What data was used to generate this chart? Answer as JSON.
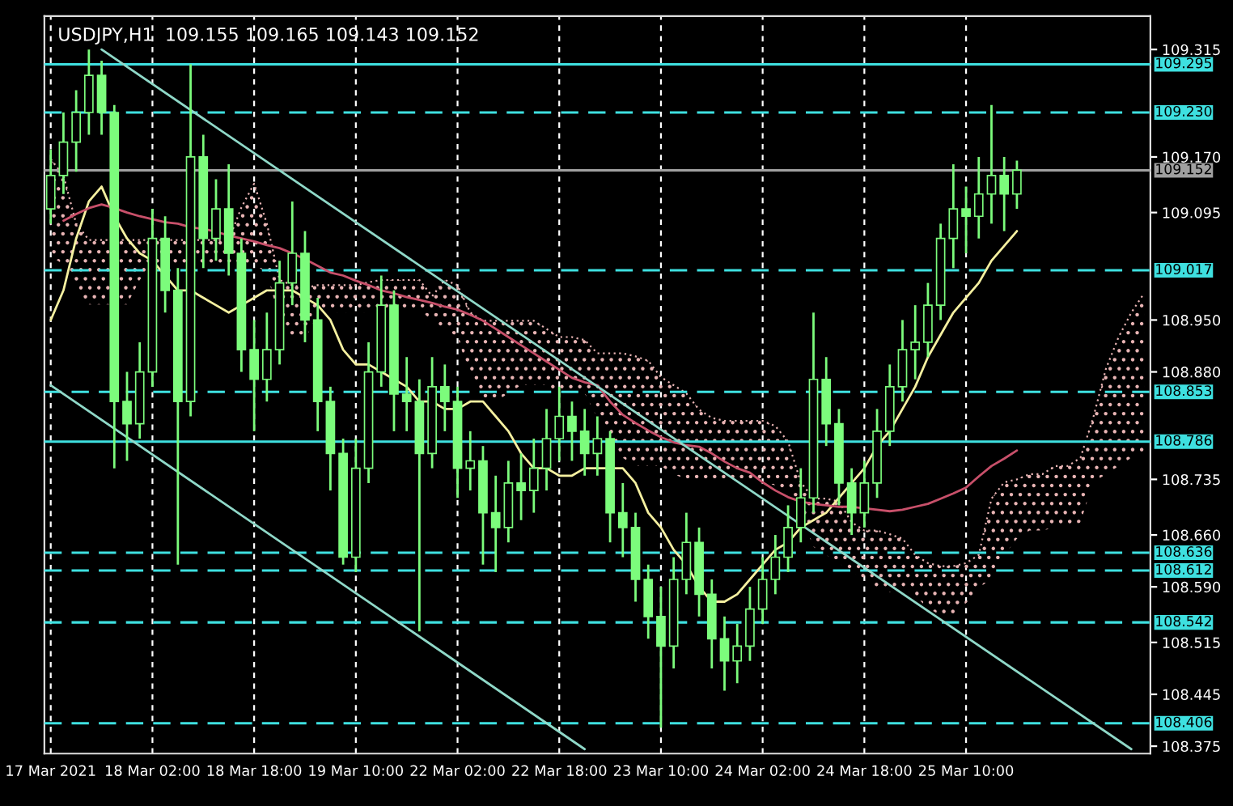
{
  "chart_data": {
    "type": "candlestick",
    "title": "USDJPY,H1  109.155 109.165 109.143 109.152",
    "categories": [
      "17 Mar 2021",
      null,
      null,
      null,
      null,
      null,
      null,
      null,
      "18 Mar 02:00",
      null,
      null,
      null,
      null,
      null,
      null,
      null,
      "18 Mar 18:00",
      null,
      null,
      null,
      null,
      null,
      null,
      null,
      "19 Mar 10:00",
      null,
      null,
      null,
      null,
      null,
      null,
      null,
      "22 Mar 02:00",
      null,
      null,
      null,
      null,
      null,
      null,
      null,
      "22 Mar 18:00",
      null,
      null,
      null,
      null,
      null,
      null,
      null,
      "23 Mar 10:00",
      null,
      null,
      null,
      null,
      null,
      null,
      null,
      "24 Mar 02:00",
      null,
      null,
      null,
      null,
      null,
      null,
      null,
      "24 Mar 18:00",
      null,
      null,
      null,
      null,
      null,
      null,
      null,
      "25 Mar 10:00",
      null,
      null,
      null,
      null,
      null,
      null,
      null,
      null,
      null,
      null,
      null,
      null,
      null,
      null
    ],
    "color": "#7cfc7c",
    "ohlc": [
      [
        109.1,
        109.18,
        109.08,
        109.145
      ],
      [
        109.145,
        109.23,
        109.12,
        109.19
      ],
      [
        109.19,
        109.26,
        109.15,
        109.23
      ],
      [
        109.23,
        109.315,
        109.2,
        109.28
      ],
      [
        109.28,
        109.3,
        109.2,
        109.23
      ],
      [
        109.23,
        109.24,
        108.75,
        108.84
      ],
      [
        108.84,
        108.88,
        108.76,
        108.81
      ],
      [
        108.81,
        108.92,
        108.79,
        108.88
      ],
      [
        108.88,
        109.1,
        108.86,
        109.06
      ],
      [
        109.06,
        109.09,
        108.96,
        108.99
      ],
      [
        108.99,
        109.02,
        108.62,
        108.84
      ],
      [
        108.84,
        109.295,
        108.82,
        109.17
      ],
      [
        109.17,
        109.2,
        109.02,
        109.06
      ],
      [
        109.06,
        109.14,
        109.03,
        109.1
      ],
      [
        109.1,
        109.16,
        109.01,
        109.04
      ],
      [
        109.04,
        109.06,
        108.88,
        108.91
      ],
      [
        108.91,
        108.95,
        108.8,
        108.87
      ],
      [
        108.87,
        108.96,
        108.84,
        108.91
      ],
      [
        108.91,
        109.03,
        108.89,
        109.0
      ],
      [
        109.0,
        109.11,
        108.97,
        109.04
      ],
      [
        109.04,
        109.07,
        108.92,
        108.95
      ],
      [
        108.95,
        108.98,
        108.8,
        108.84
      ],
      [
        108.84,
        108.86,
        108.72,
        108.77
      ],
      [
        108.77,
        108.79,
        108.62,
        108.63
      ],
      [
        108.63,
        108.79,
        108.61,
        108.75
      ],
      [
        108.75,
        108.92,
        108.73,
        108.88
      ],
      [
        108.88,
        109.01,
        108.86,
        108.97
      ],
      [
        108.97,
        108.99,
        108.8,
        108.85
      ],
      [
        108.85,
        108.9,
        108.8,
        108.84
      ],
      [
        108.84,
        108.87,
        108.53,
        108.77
      ],
      [
        108.77,
        108.9,
        108.75,
        108.86
      ],
      [
        108.86,
        108.89,
        108.8,
        108.84
      ],
      [
        108.84,
        108.86,
        108.71,
        108.75
      ],
      [
        108.75,
        108.8,
        108.72,
        108.76
      ],
      [
        108.76,
        108.78,
        108.62,
        108.69
      ],
      [
        108.69,
        108.74,
        108.61,
        108.67
      ],
      [
        108.67,
        108.76,
        108.65,
        108.73
      ],
      [
        108.73,
        108.77,
        108.68,
        108.72
      ],
      [
        108.72,
        108.79,
        108.69,
        108.75
      ],
      [
        108.75,
        108.83,
        108.72,
        108.79
      ],
      [
        108.79,
        108.86,
        108.76,
        108.82
      ],
      [
        108.82,
        108.84,
        108.76,
        108.8
      ],
      [
        108.8,
        108.83,
        108.74,
        108.77
      ],
      [
        108.77,
        108.82,
        108.74,
        108.79
      ],
      [
        108.79,
        108.8,
        108.65,
        108.69
      ],
      [
        108.69,
        108.73,
        108.63,
        108.67
      ],
      [
        108.67,
        108.69,
        108.57,
        108.6
      ],
      [
        108.6,
        108.62,
        108.52,
        108.55
      ],
      [
        108.55,
        108.59,
        108.4,
        108.51
      ],
      [
        108.51,
        108.63,
        108.48,
        108.6
      ],
      [
        108.6,
        108.69,
        108.58,
        108.65
      ],
      [
        108.65,
        108.67,
        108.55,
        108.58
      ],
      [
        108.58,
        108.6,
        108.48,
        108.52
      ],
      [
        108.52,
        108.55,
        108.45,
        108.49
      ],
      [
        108.49,
        108.54,
        108.46,
        108.51
      ],
      [
        108.51,
        108.59,
        108.49,
        108.56
      ],
      [
        108.56,
        108.63,
        108.54,
        108.6
      ],
      [
        108.6,
        108.66,
        108.58,
        108.63
      ],
      [
        108.63,
        108.7,
        108.61,
        108.67
      ],
      [
        108.67,
        108.75,
        108.65,
        108.71
      ],
      [
        108.71,
        108.96,
        108.69,
        108.87
      ],
      [
        108.87,
        108.9,
        108.78,
        108.81
      ],
      [
        108.81,
        108.83,
        108.7,
        108.73
      ],
      [
        108.73,
        108.75,
        108.66,
        108.69
      ],
      [
        108.69,
        108.76,
        108.67,
        108.73
      ],
      [
        108.73,
        108.83,
        108.71,
        108.8
      ],
      [
        108.8,
        108.89,
        108.78,
        108.86
      ],
      [
        108.86,
        108.95,
        108.84,
        108.91
      ],
      [
        108.91,
        108.97,
        108.87,
        108.92
      ],
      [
        108.92,
        109.0,
        108.9,
        108.97
      ],
      [
        108.97,
        109.08,
        108.95,
        109.06
      ],
      [
        109.06,
        109.16,
        109.02,
        109.1
      ],
      [
        109.1,
        109.13,
        109.04,
        109.09
      ],
      [
        109.09,
        109.17,
        109.06,
        109.12
      ],
      [
        109.12,
        109.24,
        109.08,
        109.145
      ],
      [
        109.145,
        109.17,
        109.07,
        109.12
      ],
      [
        109.12,
        109.165,
        109.1,
        109.152
      ],
      null,
      null,
      null,
      null,
      null,
      null,
      null,
      null,
      null,
      null
    ],
    "series": [
      {
        "type": "line",
        "color": "#f5f0a0",
        "values": [
          108.95,
          108.99,
          109.06,
          109.11,
          109.13,
          109.09,
          109.06,
          109.04,
          109.03,
          109.01,
          108.99,
          108.99,
          108.98,
          108.97,
          108.96,
          108.97,
          108.98,
          108.99,
          108.99,
          108.99,
          108.98,
          108.97,
          108.95,
          108.91,
          108.89,
          108.89,
          108.88,
          108.87,
          108.86,
          108.84,
          108.84,
          108.83,
          108.83,
          108.84,
          108.84,
          108.82,
          108.8,
          108.77,
          108.75,
          108.75,
          108.74,
          108.74,
          108.75,
          108.75,
          108.75,
          108.75,
          108.73,
          108.69,
          108.67,
          108.64,
          108.62,
          108.59,
          108.57,
          108.57,
          108.58,
          108.6,
          108.62,
          108.64,
          108.65,
          108.67,
          108.68,
          108.69,
          108.71,
          108.73,
          108.75,
          108.78,
          108.8,
          108.83,
          108.86,
          108.9,
          108.93,
          108.96,
          108.98,
          109.0,
          109.03,
          109.05,
          109.07,
          null,
          null,
          null,
          null,
          null,
          null,
          null,
          null,
          null,
          null
        ]
      },
      {
        "type": "line",
        "color": "#c8506a",
        "values": [
          null,
          109.084,
          109.093,
          109.101,
          109.106,
          109.101,
          109.095,
          109.09,
          109.086,
          109.082,
          109.08,
          109.075,
          109.073,
          109.069,
          109.064,
          109.06,
          109.056,
          109.051,
          109.047,
          109.04,
          109.032,
          109.023,
          109.014,
          109.01,
          109.003,
          108.997,
          108.99,
          108.986,
          108.981,
          108.977,
          108.973,
          108.968,
          108.964,
          108.957,
          108.949,
          108.938,
          108.927,
          108.916,
          108.905,
          108.894,
          108.883,
          108.872,
          108.866,
          108.862,
          108.84,
          108.822,
          108.811,
          108.801,
          108.792,
          108.785,
          108.781,
          108.779,
          108.77,
          108.759,
          108.75,
          108.744,
          108.731,
          108.72,
          108.711,
          108.705,
          108.702,
          108.7,
          108.698,
          108.698,
          108.696,
          108.694,
          108.692,
          108.694,
          108.698,
          108.702,
          108.709,
          108.716,
          108.724,
          108.739,
          108.753,
          108.763,
          108.774,
          null,
          null,
          null,
          null,
          null,
          null,
          null,
          null,
          null,
          null
        ]
      },
      {
        "type": "line",
        "color": "#e8b4b4",
        "line_style": "dotted",
        "values": [
          109.167,
          109.145,
          109.08,
          109.058,
          109.058,
          109.058,
          109.058,
          109.058,
          109.058,
          109.058,
          109.058,
          109.058,
          109.058,
          109.058,
          109.058,
          109.102,
          109.134,
          109.08,
          109.004,
          108.997,
          108.993,
          108.997,
          108.997,
          108.997,
          108.997,
          109.001,
          109.004,
          109.004,
          109.004,
          109.004,
          108.982,
          109.004,
          108.997,
          108.96,
          108.949,
          108.949,
          108.949,
          108.949,
          108.949,
          108.938,
          108.927,
          108.927,
          108.923,
          108.905,
          108.905,
          108.905,
          108.901,
          108.895,
          108.873,
          108.862,
          108.851,
          108.829,
          108.818,
          108.814,
          108.814,
          108.814,
          108.814,
          108.807,
          108.786,
          108.731,
          108.709,
          108.709,
          108.705,
          108.677,
          108.666,
          108.666,
          108.661,
          108.655,
          108.633,
          108.622,
          108.618,
          108.618,
          108.622,
          108.633,
          108.709,
          108.731,
          108.735,
          108.742,
          108.742,
          108.753,
          108.753,
          108.764,
          108.818,
          108.884,
          108.927,
          108.96,
          108.986
        ],
        "upper": [
          109.167,
          109.145,
          109.08,
          109.058,
          109.058,
          109.058,
          109.058,
          109.058,
          109.058,
          109.058,
          109.058,
          109.058,
          109.058,
          109.058,
          109.058,
          109.102,
          109.134,
          109.08,
          109.004,
          108.997,
          108.993,
          108.997,
          108.997,
          108.997,
          108.997,
          109.001,
          109.004,
          109.004,
          109.004,
          109.004,
          108.982,
          109.004,
          108.997,
          108.96,
          108.949,
          108.949,
          108.949,
          108.949,
          108.949,
          108.938,
          108.927,
          108.927,
          108.923,
          108.905,
          108.905,
          108.905,
          108.901,
          108.895,
          108.873,
          108.862,
          108.851,
          108.829,
          108.818,
          108.814,
          108.814,
          108.814,
          108.814,
          108.807,
          108.786,
          108.731,
          108.709,
          108.709,
          108.705,
          108.677,
          108.666,
          108.666,
          108.661,
          108.655,
          108.633,
          108.622,
          108.618,
          108.618,
          108.622,
          108.633,
          108.709,
          108.731,
          108.735,
          108.742,
          108.742,
          108.753,
          108.753,
          108.764,
          108.818,
          108.884,
          108.927,
          108.96,
          108.986
        ],
        "lower": [
          109.036,
          109.025,
          108.993,
          108.971,
          108.971,
          108.971,
          108.971,
          109.004,
          109.025,
          109.025,
          109.025,
          109.025,
          109.025,
          109.025,
          109.025,
          109.025,
          109.025,
          109.014,
          108.949,
          108.927,
          108.923,
          108.96,
          108.96,
          108.96,
          108.96,
          108.96,
          108.964,
          108.964,
          108.964,
          108.964,
          108.949,
          108.938,
          108.927,
          108.873,
          108.84,
          108.84,
          108.851,
          108.862,
          108.862,
          108.862,
          108.851,
          108.851,
          108.851,
          108.818,
          108.786,
          108.764,
          108.753,
          108.753,
          108.753,
          108.742,
          108.735,
          108.731,
          108.731,
          108.731,
          108.731,
          108.731,
          108.731,
          108.727,
          108.72,
          108.687,
          108.644,
          108.633,
          108.622,
          108.611,
          108.6,
          108.589,
          108.583,
          108.589,
          108.578,
          108.561,
          108.552,
          108.552,
          108.568,
          108.589,
          108.6,
          108.633,
          108.655,
          108.666,
          108.666,
          108.67,
          108.67,
          108.677,
          108.731,
          108.742,
          108.753,
          108.764,
          108.77
        ]
      },
      {
        "type": "line",
        "color": "#8fd8c8",
        "values": [
          null,
          null,
          null,
          null,
          109.315,
          null,
          null,
          null,
          null,
          null,
          null,
          null,
          null,
          null,
          null,
          null,
          null,
          null,
          null,
          null,
          null,
          null,
          null,
          null,
          null,
          null,
          null,
          null,
          null,
          null,
          null,
          null,
          null,
          null,
          null,
          null,
          null,
          null,
          null,
          null,
          null,
          null,
          null,
          null,
          null,
          null,
          null,
          null,
          null,
          null,
          null,
          null,
          null,
          null,
          null,
          null,
          null,
          null,
          null,
          null,
          null,
          null,
          null,
          null,
          null,
          null,
          null,
          null,
          null,
          null,
          null,
          null,
          null,
          null,
          null,
          null,
          null,
          null,
          null,
          null,
          null,
          null,
          null,
          null,
          null,
          108.371,
          null
        ]
      },
      {
        "type": "line",
        "color": "#8fd8c8",
        "values": [
          108.862,
          null,
          null,
          null,
          null,
          null,
          null,
          null,
          null,
          null,
          null,
          null,
          null,
          null,
          null,
          null,
          null,
          null,
          null,
          null,
          null,
          null,
          null,
          null,
          null,
          null,
          null,
          null,
          null,
          null,
          null,
          null,
          null,
          null,
          null,
          null,
          null,
          null,
          null,
          null,
          null,
          null,
          108.371,
          null,
          null,
          null,
          null,
          null,
          null,
          null,
          null,
          null,
          null,
          null,
          null,
          null,
          null,
          null,
          null,
          null,
          null,
          null,
          null,
          null,
          null,
          null,
          null,
          null,
          null,
          null,
          null,
          null,
          null,
          null,
          null,
          null,
          null,
          null,
          null,
          null,
          null,
          null,
          null,
          null,
          null,
          null,
          null
        ]
      }
    ],
    "ylim": [
      108.365,
      109.36
    ],
    "yticks": [
      109.315,
      {
        "value": 109.17,
        "label": "109.170"
      },
      109.095,
      {
        "value": 108.95,
        "label": "108.950"
      },
      {
        "value": 108.88,
        "label": "108.880"
      },
      108.735,
      {
        "value": 108.66,
        "label": "108.660"
      },
      {
        "value": 108.59,
        "label": "108.590"
      },
      108.515,
      108.445,
      108.375
    ],
    "ref_lines": [
      {
        "axis": "y",
        "value": 109.295,
        "label": "109.295",
        "color": "#3ee0e0",
        "line_style": "solid"
      },
      {
        "axis": "y",
        "value": 109.23,
        "label": "109.230",
        "color": "#3ee0e0",
        "line_style": "dashed"
      },
      {
        "axis": "y",
        "value": 109.152,
        "label": "109.152",
        "color": "#a0a0a0",
        "line_style": "solid"
      },
      {
        "axis": "y",
        "value": 109.017,
        "label": "109.017",
        "color": "#3ee0e0",
        "line_style": "dashed"
      },
      {
        "axis": "y",
        "value": 108.853,
        "label": "108.853",
        "color": "#3ee0e0",
        "line_style": "dashed"
      },
      {
        "axis": "y",
        "value": 108.786,
        "label": "108.786",
        "color": "#3ee0e0",
        "line_style": "solid"
      },
      {
        "axis": "y",
        "value": 108.636,
        "label": "108.636",
        "color": "#3ee0e0",
        "line_style": "dashed"
      },
      {
        "axis": "y",
        "value": 108.612,
        "label": "108.612",
        "color": "#3ee0e0",
        "line_style": "dashed"
      },
      {
        "axis": "y",
        "value": 108.542,
        "label": "108.542",
        "color": "#3ee0e0",
        "line_style": "dashed"
      },
      {
        "axis": "y",
        "value": 108.406,
        "label": "108.406",
        "color": "#3ee0e0",
        "line_style": "dashed"
      }
    ],
    "grid": "x"
  }
}
